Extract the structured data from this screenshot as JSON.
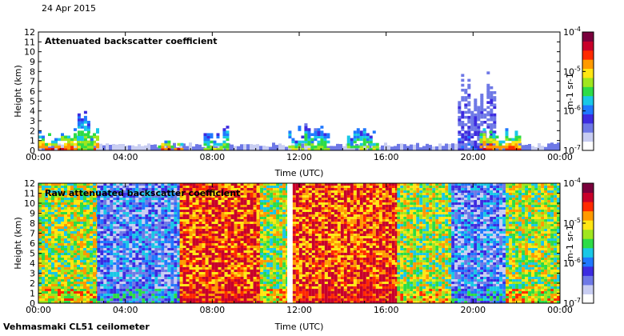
{
  "date_label": "24 Apr 2015",
  "instrument_label": "Vehmasmaki CL51 ceilometer",
  "colormap": [
    "#ffffff",
    "#c8cdf2",
    "#6e78e6",
    "#3c2be0",
    "#1f78ff",
    "#19c8e6",
    "#2ddc46",
    "#a0e61e",
    "#ffe614",
    "#ff9a00",
    "#ff2a00",
    "#c8002a",
    "#7a003c"
  ],
  "chart_data": [
    {
      "type": "heatmap",
      "title": "Attenuated backscatter coefficient",
      "xlabel": "Time (UTC)",
      "ylabel": "Height (km)",
      "xlim": [
        0,
        24
      ],
      "ylim": [
        0,
        12
      ],
      "x_tick_labels": [
        "00:00",
        "04:00",
        "08:00",
        "12:00",
        "16:00",
        "20:00",
        "00:00"
      ],
      "y_tick_labels": [
        "0",
        "1",
        "2",
        "3",
        "4",
        "5",
        "6",
        "7",
        "8",
        "9",
        "10",
        "11",
        "12"
      ],
      "colorbar": {
        "label": "m-1 sr-1",
        "scale": "log",
        "min_label": "10-7",
        "max_label": "10-4",
        "tick_labels": [
          "10-7",
          "10-6",
          "10-5",
          "10-4"
        ]
      },
      "features": [
        {
          "x": [
            0.0,
            2.7
          ],
          "top_km": 2.3,
          "level": "high"
        },
        {
          "x": [
            1.8,
            2.5
          ],
          "top_km": 4.0,
          "level": "medium"
        },
        {
          "x": [
            5.5,
            6.6
          ],
          "top_km": 1.0,
          "level": "high"
        },
        {
          "x": [
            7.6,
            8.7
          ],
          "top_km": 2.5,
          "level": "medium"
        },
        {
          "x": [
            11.5,
            13.4
          ],
          "top_km": 2.8,
          "level": "medium"
        },
        {
          "x": [
            14.2,
            15.6
          ],
          "top_km": 2.8,
          "level": "medium"
        },
        {
          "x": [
            19.3,
            21.0
          ],
          "top_km": 8.0,
          "level": "low"
        },
        {
          "x": [
            20.3,
            22.2
          ],
          "top_km": 2.5,
          "level": "high"
        }
      ]
    },
    {
      "type": "heatmap",
      "title": "Raw attenuated backscatter coefficient",
      "xlabel": "Time (UTC)",
      "ylabel": "Height (km)",
      "xlim": [
        0,
        24
      ],
      "ylim": [
        0,
        12
      ],
      "x_tick_labels": [
        "00:00",
        "04:00",
        "08:00",
        "12:00",
        "16:00",
        "20:00",
        "00:00"
      ],
      "y_tick_labels": [
        "0",
        "1",
        "2",
        "3",
        "4",
        "5",
        "6",
        "7",
        "8",
        "9",
        "10",
        "11",
        "12"
      ],
      "colorbar": {
        "label": "m-1 sr-1",
        "scale": "log",
        "min_label": "10-7",
        "max_label": "10-4",
        "tick_labels": [
          "10-7",
          "10-6",
          "10-5",
          "10-4"
        ]
      },
      "noise_regions": [
        {
          "x": [
            0.0,
            2.7
          ],
          "level": "medium"
        },
        {
          "x": [
            2.7,
            6.5
          ],
          "level": "low"
        },
        {
          "x": [
            6.5,
            10.2
          ],
          "level": "high"
        },
        {
          "x": [
            10.2,
            11.4
          ],
          "level": "medium"
        },
        {
          "x": [
            11.7,
            16.5
          ],
          "level": "high"
        },
        {
          "x": [
            16.5,
            19.0
          ],
          "level": "medium"
        },
        {
          "x": [
            19.0,
            21.5
          ],
          "level": "low"
        },
        {
          "x": [
            21.5,
            24.0
          ],
          "level": "medium"
        }
      ]
    }
  ]
}
